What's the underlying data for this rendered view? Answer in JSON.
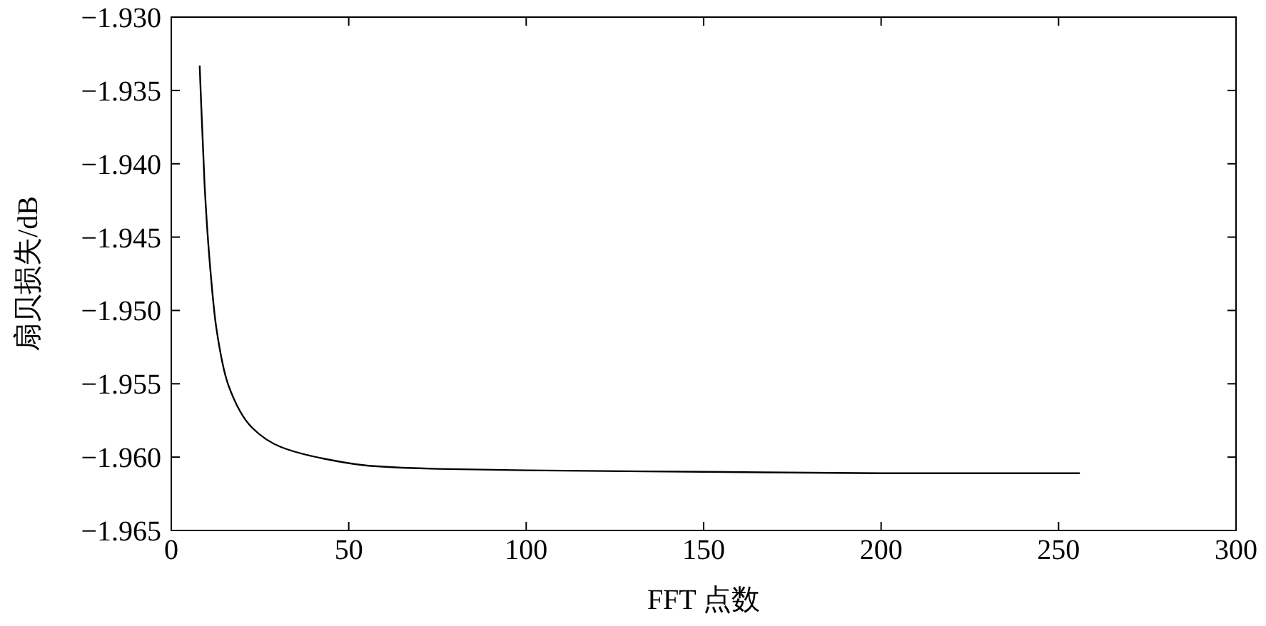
{
  "chart_data": {
    "type": "line",
    "xlabel": "FFT 点数",
    "ylabel": "扇贝损失/dB",
    "x": [
      8,
      9.4,
      10.7,
      12.7,
      16.1,
      22.8,
      30.8,
      42.9,
      56.3,
      75,
      100,
      150,
      200,
      256
    ],
    "series": [
      {
        "color": "#000000",
        "values": [
          -1.9333,
          -1.9415,
          -1.9463,
          -1.9512,
          -1.9551,
          -1.958,
          -1.9593,
          -1.9601,
          -1.9606,
          -1.9608,
          -1.9609,
          -1.961,
          -1.9611,
          -1.9611
        ]
      }
    ],
    "xlim": [
      0,
      300
    ],
    "xticks": [
      0,
      50,
      100,
      150,
      200,
      250,
      300
    ],
    "ylim": [
      -1.965,
      -1.93
    ],
    "yticks": [
      {
        "value": -1.965,
        "label": "−1.965"
      },
      {
        "value": -1.96,
        "label": "−1.960"
      },
      {
        "value": -1.955,
        "label": "−1.955"
      },
      {
        "value": -1.95,
        "label": "−1.950"
      },
      {
        "value": -1.945,
        "label": "−1.945"
      },
      {
        "value": -1.94,
        "label": "−1.940"
      },
      {
        "value": -1.935,
        "label": "−1.935"
      },
      {
        "value": -1.93,
        "label": "−1.930"
      }
    ],
    "grid": false,
    "marker": "none",
    "line_style": "solid"
  }
}
